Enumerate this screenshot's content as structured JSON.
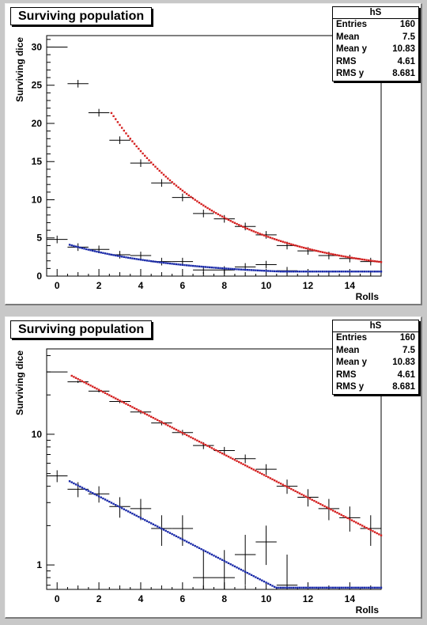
{
  "charts": [
    {
      "id": "top",
      "title": "Surviving population",
      "log_y": false,
      "stats": {
        "name": "hS",
        "rows": [
          {
            "label": "Entries",
            "value": "160"
          },
          {
            "label": "Mean",
            "value": "7.5"
          },
          {
            "label": "Mean y",
            "value": "10.83"
          },
          {
            "label": "RMS",
            "value": "4.61"
          },
          {
            "label": "RMS y",
            "value": "8.681"
          }
        ]
      },
      "xlabel": "Rolls",
      "ylabel": "Surviving dice",
      "x_ticks": [
        "0",
        "2",
        "4",
        "6",
        "8",
        "10",
        "12",
        "14"
      ],
      "y_ticks": [
        "0",
        "5",
        "10",
        "15",
        "20",
        "25",
        "30"
      ]
    },
    {
      "id": "bottom",
      "title": "Surviving population",
      "log_y": true,
      "stats": {
        "name": "hS",
        "rows": [
          {
            "label": "Entries",
            "value": "160"
          },
          {
            "label": "Mean",
            "value": "7.5"
          },
          {
            "label": "Mean y",
            "value": "10.83"
          },
          {
            "label": "RMS",
            "value": "4.61"
          },
          {
            "label": "RMS y",
            "value": "8.681"
          }
        ]
      },
      "xlabel": "Rolls",
      "ylabel": "Surviving dice",
      "x_ticks": [
        "0",
        "2",
        "4",
        "6",
        "8",
        "10",
        "12",
        "14"
      ],
      "y_ticks": [
        "1",
        "10"
      ]
    }
  ],
  "chart_data": [
    {
      "type": "scatter",
      "title": "Surviving population",
      "xlabel": "Rolls",
      "ylabel": "Surviving dice",
      "xlim": [
        -0.5,
        15.5
      ],
      "ylim": [
        0,
        31.5
      ],
      "y_scale": "linear",
      "grid": false,
      "series": [
        {
          "color": "#000000",
          "style": "errorbars",
          "x": [
            0,
            1,
            2,
            3,
            4,
            5,
            6,
            7,
            8,
            9,
            10,
            11,
            12,
            13,
            14,
            15
          ],
          "y": [
            30,
            25.2,
            21.4,
            17.8,
            14.8,
            12.2,
            10.3,
            8.2,
            7.5,
            6.5,
            5.4,
            4.0,
            3.3,
            2.7,
            2.3,
            1.9
          ],
          "yerr": [
            0,
            0.5,
            0.5,
            0.5,
            0.5,
            0.5,
            0.5,
            0.5,
            0.5,
            0.5,
            0.5,
            0.5,
            0.5,
            0.5,
            0.5,
            0.5
          ]
        },
        {
          "color": "#000000",
          "style": "errorbars",
          "x": [
            0,
            1,
            2,
            3,
            4,
            5,
            6,
            7,
            8,
            9,
            10,
            11
          ],
          "y": [
            4.8,
            3.8,
            3.5,
            2.8,
            2.7,
            1.9,
            1.9,
            0.8,
            0.8,
            1.2,
            1.5,
            0.7
          ],
          "yerr": [
            0.5,
            0.5,
            0.5,
            0.5,
            0.5,
            0.5,
            0.5,
            0.5,
            0.5,
            0.5,
            0.5,
            0.5
          ]
        },
        {
          "color": "#d42020",
          "style": "points",
          "fit": {
            "A": 35.0,
            "k": 0.19,
            "x_from": 2.6,
            "x_to": 15.5
          }
        },
        {
          "color": "#1a2aa8",
          "style": "points",
          "fit": {
            "A": 4.6,
            "k": 0.19,
            "x_from": 0.6,
            "x_to": 15.5,
            "cutoff": 0.6
          }
        }
      ]
    },
    {
      "type": "scatter",
      "title": "Surviving population",
      "xlabel": "Rolls",
      "ylabel": "Surviving dice",
      "xlim": [
        -0.5,
        15.5
      ],
      "ylim": [
        0.65,
        45
      ],
      "y_scale": "log",
      "grid": false,
      "series": [
        {
          "color": "#000000",
          "style": "errorbars",
          "x": [
            0,
            1,
            2,
            3,
            4,
            5,
            6,
            7,
            8,
            9,
            10,
            11,
            12,
            13,
            14,
            15
          ],
          "y": [
            30,
            25.2,
            21.4,
            17.8,
            14.8,
            12.2,
            10.3,
            8.2,
            7.5,
            6.5,
            5.4,
            4.0,
            3.3,
            2.7,
            2.3,
            1.9
          ],
          "yerr": [
            0,
            0.5,
            0.5,
            0.5,
            0.5,
            0.5,
            0.5,
            0.5,
            0.5,
            0.5,
            0.5,
            0.5,
            0.5,
            0.5,
            0.5,
            0.5
          ]
        },
        {
          "color": "#000000",
          "style": "errorbars",
          "x": [
            0,
            1,
            2,
            3,
            4,
            5,
            6,
            7,
            8,
            9,
            10,
            11
          ],
          "y": [
            4.8,
            3.8,
            3.5,
            2.8,
            2.7,
            1.9,
            1.9,
            0.8,
            0.8,
            1.2,
            1.5,
            0.7
          ],
          "yerr": [
            0.5,
            0.5,
            0.5,
            0.5,
            0.5,
            0.5,
            0.5,
            0.5,
            0.5,
            0.5,
            0.5,
            0.5
          ]
        },
        {
          "color": "#d42020",
          "style": "points",
          "fit": {
            "A": 32.0,
            "k": 0.19,
            "x_from": 0.7,
            "x_to": 15.5
          }
        },
        {
          "color": "#1a2aa8",
          "style": "points",
          "fit": {
            "A": 4.9,
            "k": 0.19,
            "x_from": 0.6,
            "x_to": 15.5,
            "cutoff": 0.67
          }
        }
      ]
    }
  ]
}
